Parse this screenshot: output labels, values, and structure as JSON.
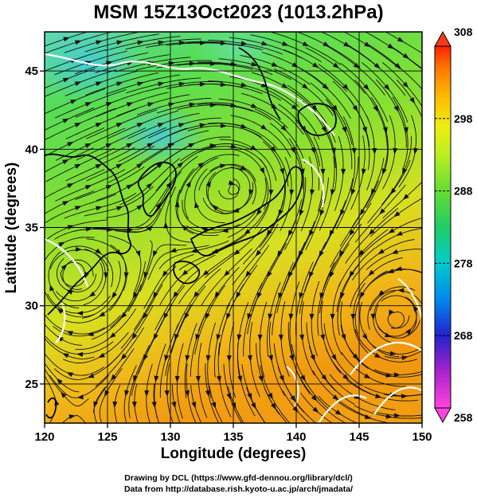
{
  "title": "MSM 15Z13Oct2023 (1013.2hPa)",
  "axes": {
    "xlabel": "Longitude (degrees)",
    "ylabel": "Latitude  (degrees)",
    "x_ticks": [
      "120",
      "125",
      "130",
      "135",
      "140",
      "145",
      "150"
    ],
    "y_ticks": [
      "25",
      "30",
      "35",
      "40",
      "45"
    ],
    "xlim": [
      120,
      150
    ],
    "ylim": [
      22.5,
      47.5
    ]
  },
  "colorbar": {
    "ticks": [
      "308",
      "298",
      "288",
      "278",
      "268",
      "258"
    ],
    "range": [
      258,
      308
    ],
    "colors": [
      "#ff00ff",
      "#9900cc",
      "#2222cc",
      "#0077ee",
      "#00cccc",
      "#22cc66",
      "#55dd33",
      "#aaee22",
      "#eeee11",
      "#ffbb00",
      "#ff7700",
      "#ff2200"
    ]
  },
  "footer": {
    "line1": "Drawing by DCL (https://www.gfd-dennou.org/library/dcl/)",
    "line2": "Data from http://database.rish.kyoto-u.ac.jp/arch/jmadata/"
  },
  "map_colors": {
    "cold": "#44ccbb",
    "mid": "#55dd44",
    "warm_yellow": "#dddd22",
    "warm_orange": "#f0a010",
    "contour": "#ffffff",
    "land_outline": "#000000"
  }
}
